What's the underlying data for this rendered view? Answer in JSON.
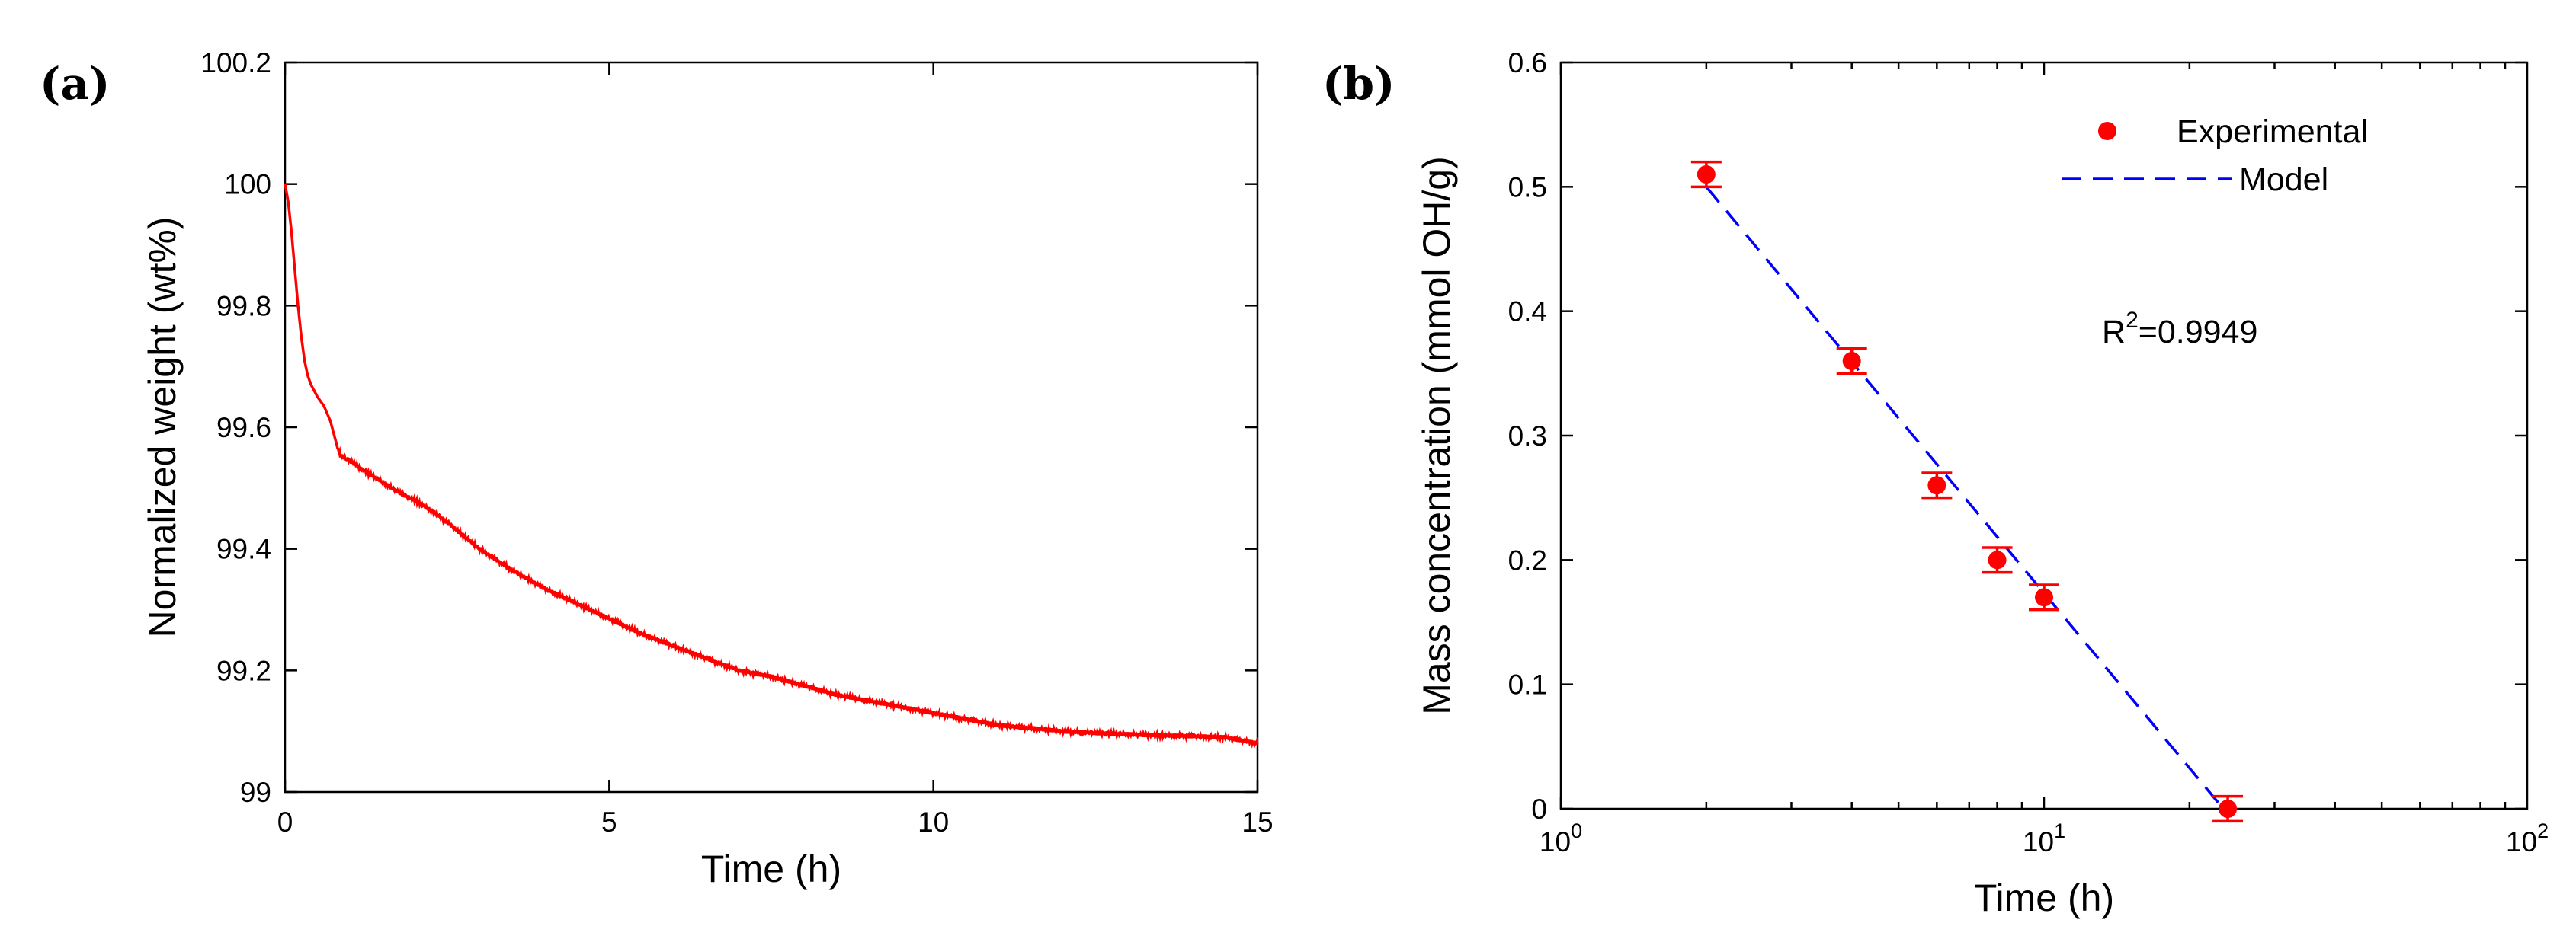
{
  "colors": {
    "data": "#ff0000",
    "model": "#0000ff",
    "axis": "#000000"
  },
  "chart_data": [
    {
      "type": "line",
      "panel_label": "(a)",
      "title": "",
      "xlabel": "Time (h)",
      "ylabel": "Normalized weight (wt%)",
      "xlim": [
        0,
        15
      ],
      "ylim": [
        99,
        100.2
      ],
      "xticks": [
        0,
        5,
        10,
        15
      ],
      "xtick_labels": [
        "0",
        "5",
        "10",
        "15"
      ],
      "yticks": [
        99,
        99.2,
        99.4,
        99.6,
        99.8,
        100,
        100.2
      ],
      "ytick_labels": [
        "99",
        "99.2",
        "99.4",
        "99.6",
        "99.8",
        "100",
        "100.2"
      ],
      "grid": false,
      "series": [
        {
          "name": "Normalized weight",
          "x": [
            0,
            0.05,
            0.1,
            0.15,
            0.2,
            0.25,
            0.3,
            0.35,
            0.4,
            0.5,
            0.6,
            0.7,
            0.75,
            0.8,
            0.85,
            0.9,
            1.0,
            1.2,
            1.5,
            1.8,
            2.0,
            2.3,
            2.6,
            3.0,
            3.5,
            4.0,
            4.5,
            5.0,
            5.5,
            6.0,
            6.5,
            7.0,
            7.5,
            8.0,
            8.5,
            9.0,
            9.5,
            10.0,
            10.5,
            11.0,
            11.5,
            12.0,
            12.5,
            13.0,
            13.5,
            14.0,
            14.5,
            15.0
          ],
          "y": [
            100.0,
            99.97,
            99.92,
            99.86,
            99.8,
            99.75,
            99.71,
            99.685,
            99.67,
            99.65,
            99.635,
            99.61,
            99.59,
            99.57,
            99.555,
            99.55,
            99.545,
            99.53,
            99.51,
            99.49,
            99.48,
            99.46,
            99.435,
            99.4,
            99.365,
            99.335,
            99.31,
            99.285,
            99.26,
            99.24,
            99.22,
            99.2,
            99.19,
            99.175,
            99.16,
            99.15,
            99.14,
            99.13,
            99.12,
            99.11,
            99.105,
            99.1,
            99.097,
            99.095,
            99.093,
            99.092,
            99.09,
            99.08
          ]
        }
      ]
    },
    {
      "type": "scatter",
      "panel_label": "(b)",
      "title": "",
      "xlabel": "Time (h)",
      "ylabel": "Mass concentration (mmol OH/g)",
      "xscale": "log",
      "xlim": [
        1,
        100
      ],
      "ylim": [
        0,
        0.6
      ],
      "xtick_labels": [
        {
          "value": 1,
          "base": "10",
          "exp": "0"
        },
        {
          "value": 10,
          "base": "10",
          "exp": "1"
        },
        {
          "value": 100,
          "base": "10",
          "exp": "2"
        }
      ],
      "yticks": [
        0,
        0.1,
        0.2,
        0.3,
        0.4,
        0.5,
        0.6
      ],
      "ytick_labels": [
        "0",
        "0.1",
        "0.2",
        "0.3",
        "0.4",
        "0.5",
        "0.6"
      ],
      "grid": false,
      "legend_position": "top-right",
      "series": [
        {
          "name": "Experimental",
          "x": [
            2,
            4,
            6,
            8,
            10,
            24
          ],
          "y": [
            0.51,
            0.36,
            0.26,
            0.2,
            0.17,
            0.0
          ],
          "error": [
            0.01,
            0.01,
            0.01,
            0.01,
            0.01,
            0.01
          ]
        },
        {
          "name": "Model",
          "style": "dashed",
          "x": [
            2,
            23.5
          ],
          "y": [
            0.5,
            0.0
          ]
        }
      ],
      "annotation": {
        "prefix": "R",
        "sup": "2",
        "suffix": "=0.9949"
      }
    }
  ]
}
